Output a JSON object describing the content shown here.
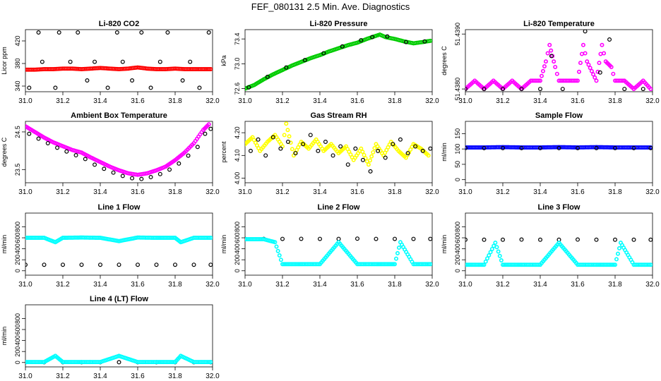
{
  "page_title": "FEF_080131  2.5 Min. Ave. Diagnostics",
  "chart_data": [
    {
      "type": "scatter",
      "title": "Li-820 CO2",
      "ylabel": "Licor ppm",
      "xlim": [
        31.0,
        32.0
      ],
      "ylim": [
        330,
        440
      ],
      "xticks": [
        "31.0",
        "31.2",
        "31.4",
        "31.6",
        "31.8",
        "32.0"
      ],
      "yticks": [
        340,
        380,
        420
      ],
      "series": [
        {
          "name": "Licor ppm (red)",
          "color": "#ff0000",
          "x": [
            31.0,
            31.05,
            31.1,
            31.15,
            31.2,
            31.25,
            31.3,
            31.35,
            31.4,
            31.45,
            31.5,
            31.55,
            31.6,
            31.65,
            31.7,
            31.75,
            31.8,
            31.85,
            31.9,
            31.95,
            31.99
          ],
          "y": [
            369,
            369,
            370,
            370,
            371,
            371,
            370,
            371,
            372,
            371,
            370,
            371,
            373,
            371,
            370,
            370,
            371,
            370,
            370,
            370,
            370
          ]
        },
        {
          "name": "Licor ppm (black)",
          "color": "#000000",
          "x": [
            31.02,
            31.07,
            31.09,
            31.16,
            31.18,
            31.24,
            31.28,
            31.33,
            31.37,
            31.44,
            31.49,
            31.52,
            31.57,
            31.62,
            31.67,
            31.72,
            31.76,
            31.84,
            31.88,
            31.93,
            31.98
          ],
          "y": [
            337,
            435,
            383,
            337,
            435,
            383,
            435,
            350,
            383,
            337,
            435,
            383,
            350,
            435,
            337,
            383,
            435,
            350,
            383,
            337,
            435
          ]
        }
      ]
    },
    {
      "type": "scatter",
      "title": "Li-820 Pressure",
      "ylabel": "kPa",
      "xlim": [
        31.0,
        32.0
      ],
      "ylim": [
        72.55,
        73.55
      ],
      "xticks": [
        "31.0",
        "31.2",
        "31.4",
        "31.6",
        "31.8",
        "32.0"
      ],
      "yticks": [
        "72.6",
        "73.0",
        "73.4"
      ],
      "series": [
        {
          "name": "kPa (green)",
          "color": "#00cc00",
          "x": [
            31.0,
            31.05,
            31.1,
            31.15,
            31.2,
            31.25,
            31.3,
            31.35,
            31.4,
            31.45,
            31.5,
            31.55,
            31.6,
            31.65,
            31.7,
            31.72,
            31.75,
            31.8,
            31.85,
            31.9,
            31.95,
            31.99
          ],
          "y": [
            72.6,
            72.66,
            72.75,
            72.83,
            72.9,
            72.97,
            73.03,
            73.09,
            73.14,
            73.2,
            73.25,
            73.3,
            73.34,
            73.4,
            73.45,
            73.47,
            73.43,
            73.4,
            73.36,
            73.33,
            73.35,
            73.37
          ]
        },
        {
          "name": "kPa (black)",
          "color": "#000000",
          "x": [
            31.02,
            31.12,
            31.22,
            31.32,
            31.42,
            31.52,
            31.62,
            31.68,
            31.76,
            31.86,
            31.96
          ],
          "y": [
            72.62,
            72.79,
            72.94,
            73.06,
            73.17,
            73.28,
            73.38,
            73.43,
            73.44,
            73.35,
            73.36
          ]
        }
      ]
    },
    {
      "type": "scatter",
      "title": "Li-820 Temperature",
      "ylabel": "degrees C",
      "xlim": [
        31.0,
        32.0
      ],
      "ylim": [
        51.43795,
        51.43908
      ],
      "xticks": [
        "31.0",
        "31.2",
        "31.4",
        "31.6",
        "31.8",
        "32.0"
      ],
      "yticks": [
        "51.4380",
        "51.4390"
      ],
      "series": [
        {
          "name": "degrees C (magenta)",
          "color": "#ff00ff",
          "x": [
            31.0,
            31.05,
            31.1,
            31.15,
            31.2,
            31.25,
            31.3,
            31.35,
            31.4,
            31.43,
            31.45,
            31.48,
            31.5,
            31.55,
            31.6,
            31.63,
            31.65,
            31.7,
            31.73,
            31.75,
            31.78,
            31.8,
            31.85,
            31.9,
            31.95,
            31.99
          ],
          "y": [
            51.438,
            51.43815,
            51.438,
            51.43815,
            51.438,
            51.43815,
            51.438,
            51.43815,
            51.43815,
            51.4385,
            51.4388,
            51.4384,
            51.43815,
            51.43815,
            51.43815,
            51.4388,
            51.4385,
            51.43815,
            51.4388,
            51.4385,
            51.4384,
            51.43815,
            51.43815,
            51.438,
            51.43815,
            51.438
          ]
        },
        {
          "name": "degrees C (black)",
          "color": "#000000",
          "x": [
            31.0,
            31.1,
            31.2,
            31.3,
            31.4,
            31.46,
            31.52,
            31.64,
            31.72,
            31.77,
            31.85,
            31.95
          ],
          "y": [
            51.438,
            51.438,
            51.438,
            51.438,
            51.438,
            51.4386,
            51.438,
            51.43905,
            51.4383,
            51.4389,
            51.438,
            51.438
          ]
        }
      ]
    },
    {
      "type": "scatter",
      "title": "Ambient Box Temperature",
      "ylabel": "degrees C",
      "xlim": [
        31.0,
        32.0
      ],
      "ylim": [
        23.15,
        24.78
      ],
      "xticks": [
        "31.0",
        "31.2",
        "31.4",
        "31.6",
        "31.8",
        "32.0"
      ],
      "yticks": [
        "23.5",
        "24.5"
      ],
      "series": [
        {
          "name": "degrees C (magenta)",
          "color": "#ff00ff",
          "x": [
            31.0,
            31.05,
            31.1,
            31.15,
            31.2,
            31.25,
            31.3,
            31.35,
            31.4,
            31.45,
            31.5,
            31.55,
            31.6,
            31.65,
            31.7,
            31.75,
            31.8,
            31.85,
            31.9,
            31.95,
            31.98
          ],
          "y": [
            24.65,
            24.5,
            24.35,
            24.22,
            24.12,
            24.02,
            23.95,
            23.82,
            23.7,
            23.58,
            23.48,
            23.4,
            23.36,
            23.4,
            23.48,
            23.58,
            23.75,
            23.95,
            24.2,
            24.55,
            24.7
          ]
        },
        {
          "name": "degrees C (black)",
          "color": "#000000",
          "x": [
            31.02,
            31.07,
            31.12,
            31.17,
            31.22,
            31.27,
            31.32,
            31.37,
            31.42,
            31.47,
            31.52,
            31.57,
            31.62,
            31.67,
            31.72,
            31.77,
            31.82,
            31.87,
            31.92,
            31.96,
            31.99
          ],
          "y": [
            24.45,
            24.32,
            24.2,
            24.08,
            23.98,
            23.88,
            23.78,
            23.63,
            23.52,
            23.42,
            23.33,
            23.27,
            23.25,
            23.3,
            23.38,
            23.5,
            23.66,
            23.87,
            24.1,
            24.45,
            24.58
          ]
        }
      ]
    },
    {
      "type": "scatter",
      "title": "Gas Stream RH",
      "ylabel": "percent",
      "xlim": [
        31.0,
        32.0
      ],
      "ylim": [
        3.98,
        4.25
      ],
      "xticks": [
        "31.0",
        "31.2",
        "31.4",
        "31.6",
        "31.8",
        "32.0"
      ],
      "yticks": [
        "4.00",
        "4.10",
        "4.20"
      ],
      "series": [
        {
          "name": "percent (yellow)",
          "color": "#ffff00",
          "x": [
            31.0,
            31.04,
            31.08,
            31.12,
            31.16,
            31.2,
            31.22,
            31.26,
            31.3,
            31.34,
            31.38,
            31.42,
            31.46,
            31.5,
            31.54,
            31.58,
            31.62,
            31.66,
            31.7,
            31.74,
            31.78,
            31.82,
            31.86,
            31.9,
            31.94,
            31.98
          ],
          "y": [
            4.15,
            4.18,
            4.12,
            4.16,
            4.19,
            4.14,
            4.24,
            4.1,
            4.16,
            4.13,
            4.17,
            4.12,
            4.15,
            4.11,
            4.14,
            4.08,
            4.13,
            4.06,
            4.15,
            4.1,
            4.16,
            4.12,
            4.09,
            4.15,
            4.13,
            4.1
          ]
        },
        {
          "name": "percent (black)",
          "color": "#000000",
          "x": [
            31.03,
            31.07,
            31.11,
            31.15,
            31.19,
            31.23,
            31.27,
            31.31,
            31.35,
            31.39,
            31.43,
            31.47,
            31.51,
            31.55,
            31.59,
            31.63,
            31.67,
            31.71,
            31.75,
            31.79,
            31.83,
            31.87,
            31.91,
            31.95,
            31.99
          ],
          "y": [
            4.12,
            4.17,
            4.1,
            4.18,
            4.13,
            4.16,
            4.11,
            4.15,
            4.19,
            4.12,
            4.16,
            4.1,
            4.14,
            4.06,
            4.13,
            4.08,
            4.03,
            4.12,
            4.09,
            4.15,
            4.17,
            4.11,
            4.14,
            4.12,
            4.13
          ]
        }
      ]
    },
    {
      "type": "scatter",
      "title": "Sample Flow",
      "ylabel": "ml/min",
      "xlim": [
        31.0,
        32.0
      ],
      "ylim": [
        -10,
        190
      ],
      "xticks": [
        "31.0",
        "31.2",
        "31.4",
        "31.6",
        "31.8",
        "32.0"
      ],
      "yticks": [
        0,
        50,
        100,
        150
      ],
      "series": [
        {
          "name": "ml/min (blue)",
          "color": "#0000ff",
          "x": [
            31.0,
            31.1,
            31.2,
            31.3,
            31.4,
            31.5,
            31.6,
            31.7,
            31.8,
            31.9,
            31.99
          ],
          "y": [
            105,
            105,
            106,
            105,
            105,
            106,
            105,
            106,
            105,
            105,
            105
          ]
        },
        {
          "name": "ml/min (black)",
          "color": "#000000",
          "x": [
            31.0,
            31.1,
            31.2,
            31.3,
            31.4,
            31.5,
            31.6,
            31.7,
            31.8,
            31.9,
            31.99
          ],
          "y": [
            103,
            103,
            103,
            103,
            103,
            103,
            103,
            103,
            103,
            103,
            103
          ]
        }
      ]
    },
    {
      "type": "scatter",
      "title": "Line 1 Flow",
      "ylabel": "ml/min",
      "xlim": [
        31.0,
        32.0
      ],
      "ylim": [
        -80,
        1050
      ],
      "xticks": [
        "31.0",
        "31.2",
        "31.4",
        "31.6",
        "31.8",
        "32.0"
      ],
      "yticks": [
        0,
        200,
        400,
        600,
        800
      ],
      "series": [
        {
          "name": "ml/min (cyan)",
          "color": "#00ffff",
          "x": [
            31.0,
            31.1,
            31.16,
            31.2,
            31.3,
            31.4,
            31.5,
            31.6,
            31.7,
            31.8,
            31.83,
            31.9,
            31.99
          ],
          "y": [
            600,
            600,
            520,
            600,
            605,
            600,
            540,
            605,
            600,
            600,
            520,
            600,
            600
          ]
        },
        {
          "name": "ml/min (black)",
          "color": "#000000",
          "x": [
            31.0,
            31.1,
            31.2,
            31.3,
            31.4,
            31.5,
            31.6,
            31.7,
            31.8,
            31.9,
            31.99
          ],
          "y": [
            110,
            110,
            110,
            110,
            110,
            110,
            110,
            110,
            110,
            110,
            110
          ]
        }
      ]
    },
    {
      "type": "scatter",
      "title": "Line 2 Flow",
      "ylabel": "ml/min",
      "xlim": [
        31.0,
        32.0
      ],
      "ylim": [
        -80,
        1050
      ],
      "xticks": [
        "31.0",
        "31.2",
        "31.4",
        "31.6",
        "31.8",
        "32.0"
      ],
      "yticks": [
        0,
        200,
        400,
        600,
        800
      ],
      "series": [
        {
          "name": "ml/min (black)",
          "color": "#000000",
          "x": [
            31.0,
            31.1,
            31.2,
            31.3,
            31.4,
            31.5,
            31.6,
            31.7,
            31.8,
            31.9,
            31.99
          ],
          "y": [
            580,
            580,
            580,
            582,
            580,
            580,
            585,
            580,
            580,
            580,
            580
          ]
        },
        {
          "name": "ml/min (cyan)",
          "color": "#00ffff",
          "x": [
            31.0,
            31.1,
            31.16,
            31.2,
            31.3,
            31.4,
            31.5,
            31.6,
            31.7,
            31.8,
            31.83,
            31.9,
            31.99
          ],
          "y": [
            575,
            575,
            520,
            120,
            120,
            120,
            520,
            120,
            120,
            120,
            520,
            120,
            120
          ]
        }
      ]
    },
    {
      "type": "scatter",
      "title": "Line 3 Flow",
      "ylabel": "ml/min",
      "xlim": [
        31.0,
        32.0
      ],
      "ylim": [
        -80,
        1050
      ],
      "xticks": [
        "31.0",
        "31.2",
        "31.4",
        "31.6",
        "31.8",
        "32.0"
      ],
      "yticks": [
        0,
        200,
        400,
        600,
        800
      ],
      "series": [
        {
          "name": "ml/min (black)",
          "color": "#000000",
          "x": [
            31.0,
            31.1,
            31.2,
            31.3,
            31.4,
            31.5,
            31.6,
            31.7,
            31.8,
            31.9,
            31.99
          ],
          "y": [
            565,
            565,
            565,
            568,
            565,
            565,
            568,
            565,
            565,
            565,
            565
          ]
        },
        {
          "name": "ml/min (cyan)",
          "color": "#00ffff",
          "x": [
            31.0,
            31.1,
            31.16,
            31.2,
            31.3,
            31.4,
            31.5,
            31.6,
            31.7,
            31.8,
            31.83,
            31.9,
            31.99
          ],
          "y": [
            110,
            110,
            510,
            110,
            110,
            110,
            510,
            110,
            110,
            110,
            510,
            110,
            110
          ]
        }
      ]
    },
    {
      "type": "scatter",
      "title": "Line 4 (LT) Flow",
      "ylabel": "ml/min",
      "xlim": [
        31.0,
        32.0
      ],
      "ylim": [
        -80,
        1050
      ],
      "xticks": [
        "31.0",
        "31.2",
        "31.4",
        "31.6",
        "31.8",
        "32.0"
      ],
      "yticks": [
        0,
        200,
        400,
        600,
        800
      ],
      "series": [
        {
          "name": "ml/min (black)",
          "color": "#000000",
          "x": [
            31.0,
            31.1,
            31.2,
            31.3,
            31.4,
            31.5,
            31.6,
            31.7,
            31.8,
            31.9,
            31.99
          ],
          "y": [
            5,
            5,
            5,
            5,
            5,
            5,
            5,
            5,
            5,
            5,
            5
          ]
        },
        {
          "name": "ml/min (cyan)",
          "color": "#00ffff",
          "x": [
            31.0,
            31.1,
            31.16,
            31.2,
            31.3,
            31.4,
            31.5,
            31.6,
            31.7,
            31.8,
            31.83,
            31.9,
            31.99
          ],
          "y": [
            8,
            8,
            120,
            8,
            8,
            8,
            120,
            8,
            8,
            8,
            120,
            8,
            8
          ]
        }
      ]
    }
  ]
}
